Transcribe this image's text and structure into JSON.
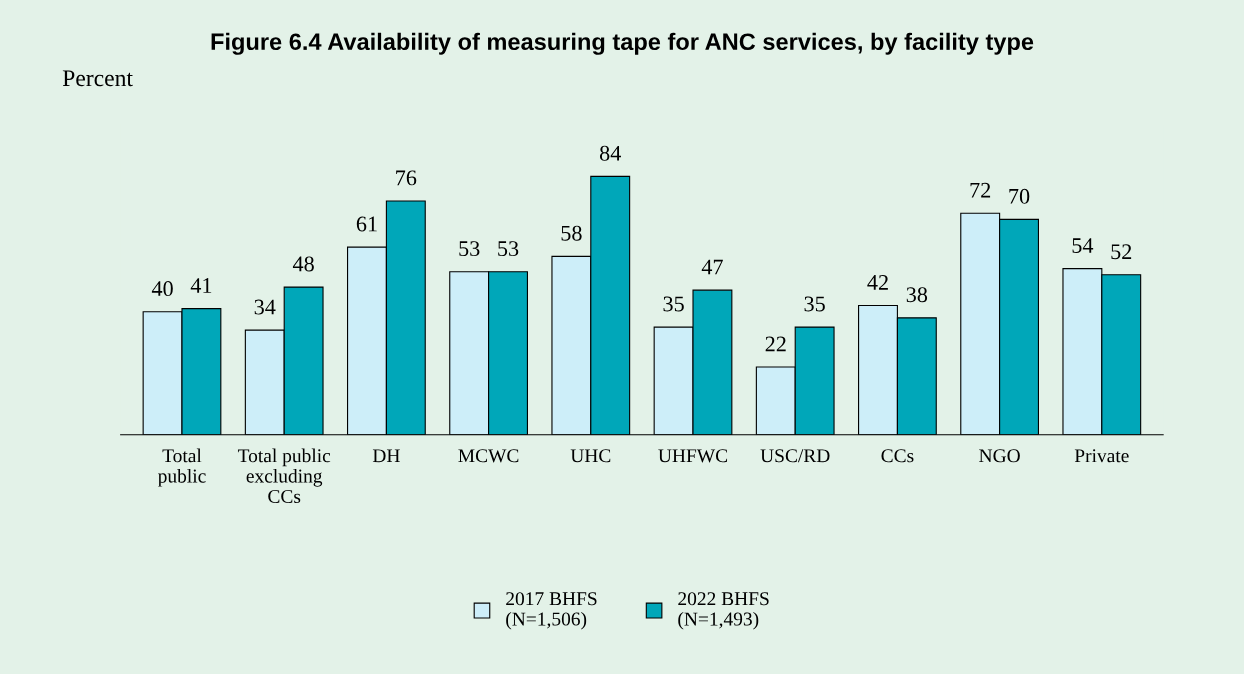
{
  "chart_data": {
    "type": "bar",
    "title": "Figure 6.4 Availability of measuring tape for ANC services, by facility type",
    "ylabel": "Percent",
    "categories": [
      "Total\npublic",
      "Total public\nexcluding\nCCs",
      "DH",
      "MCWC",
      "UHC",
      "UHFWC",
      "USC/RD",
      "CCs",
      "NGO",
      "Private"
    ],
    "series": [
      {
        "name": "2017 BHFS\n(N=1,506)",
        "color": "#cdeef9",
        "values": [
          40,
          34,
          61,
          53,
          58,
          35,
          22,
          42,
          72,
          54
        ]
      },
      {
        "name": "2022 BHFS\n(N=1,493)",
        "color": "#00a7b9",
        "values": [
          41,
          48,
          76,
          53,
          84,
          47,
          35,
          38,
          70,
          52
        ]
      }
    ],
    "data_labels": true,
    "grid": false,
    "legend": "bottom"
  }
}
